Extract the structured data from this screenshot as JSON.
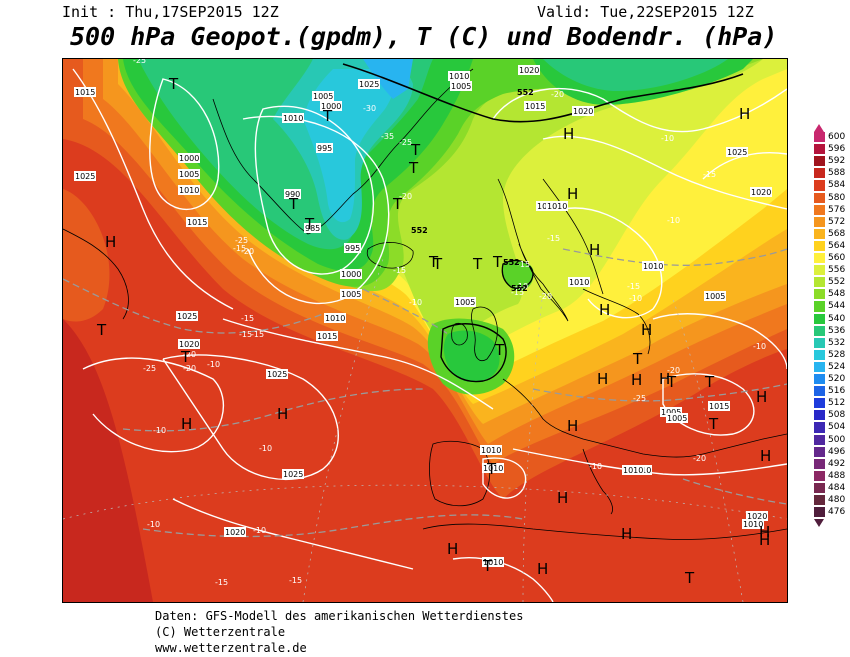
{
  "header": {
    "init": "Init : Thu,17SEP2015 12Z",
    "valid": "Valid: Tue,22SEP2015 12Z",
    "title": "500 hPa Geopot.(gpdm), T (C) und Bodendr. (hPa)"
  },
  "footer": {
    "line1": "Daten: GFS-Modell des amerikanischen Wetterdienstes",
    "line2": "(C) Wetterzentrale",
    "line3": "www.wetterzentrale.de"
  },
  "scale": {
    "labels": [
      "600",
      "596",
      "592",
      "588",
      "584",
      "580",
      "576",
      "572",
      "568",
      "564",
      "560",
      "556",
      "552",
      "548",
      "544",
      "540",
      "536",
      "532",
      "528",
      "524",
      "520",
      "516",
      "512",
      "508",
      "504",
      "500",
      "496",
      "492",
      "488",
      "484",
      "480",
      "476"
    ],
    "colors": [
      "#c8286e",
      "#b4143c",
      "#a0141e",
      "#c8281e",
      "#dc3c1e",
      "#e65a1e",
      "#f0781e",
      "#f5961e",
      "#fab41e",
      "#ffd21e",
      "#fff03c",
      "#dcf03c",
      "#b4e632",
      "#8cdc28",
      "#5ad228",
      "#28c83c",
      "#28c878",
      "#28c8b4",
      "#28c8dc",
      "#28b4f0",
      "#1e8cf0",
      "#1e64e6",
      "#1e3cdc",
      "#2828c8",
      "#3c28b4",
      "#5028a0",
      "#64288c",
      "#782878",
      "#8c2864",
      "#782850",
      "#64283c",
      "#501e3c"
    ]
  },
  "map": {
    "pressure_labels": [
      "1015",
      "1025",
      "1000",
      "1005",
      "1010",
      "1015",
      "1025",
      "1020",
      "1025",
      "1025",
      "1010",
      "1005",
      "1000",
      "995",
      "985",
      "990",
      "995",
      "1000",
      "1005",
      "1010",
      "1015",
      "1010",
      "1005",
      "1020",
      "1025",
      "1015",
      "1010",
      "1015",
      "1010",
      "1005",
      "1010",
      "1005",
      "1020",
      "1015",
      "1010",
      "1025",
      "1020",
      "1020",
      "1010",
      "1010",
      "1005",
      "1010",
      "1010",
      "1005",
      "1010",
      "1015",
      "1020"
    ],
    "temp_labels": [
      "-25",
      "-30",
      "-35",
      "-25",
      "-20",
      "-15",
      "-10",
      "-20",
      "-15",
      "-25",
      "-20",
      "-15",
      "-15",
      "-20",
      "-25",
      "-15",
      "-20",
      "-10",
      "-10",
      "-10",
      "-10",
      "-10",
      "-15",
      "-15",
      "-15",
      "-10",
      "-15",
      "-15",
      "-20",
      "-15",
      "-10",
      "-10",
      "-10",
      "-15",
      "-20",
      "-25",
      "-20",
      "-10",
      "-10"
    ],
    "height_labels": [
      "552",
      "552",
      "552",
      "552"
    ],
    "highs": [
      "H",
      "H",
      "H",
      "H",
      "H",
      "H",
      "H",
      "H",
      "H",
      "H",
      "H",
      "H",
      "H",
      "H",
      "H",
      "H",
      "H",
      "H",
      "H",
      "H",
      "H"
    ],
    "lows": [
      "T",
      "T",
      "T",
      "T",
      "T",
      "T",
      "T",
      "T",
      "T",
      "T",
      "T",
      "T",
      "T",
      "T",
      "T",
      "T",
      "T",
      "T",
      "T",
      "T",
      "T"
    ]
  }
}
